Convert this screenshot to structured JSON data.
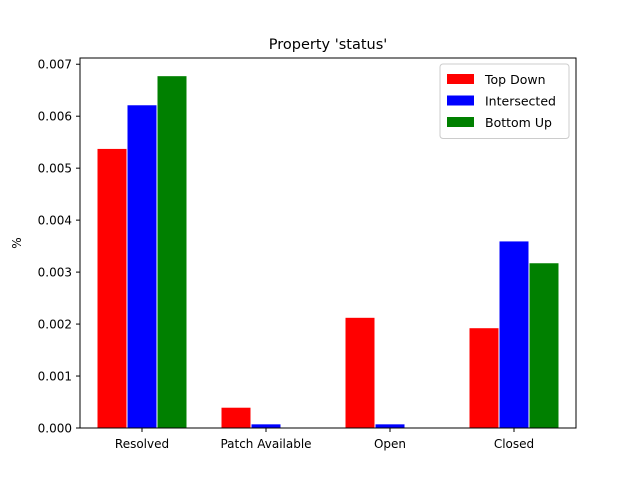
{
  "chart_data": {
    "type": "bar",
    "title": "Property 'status'",
    "xlabel": "",
    "ylabel": "%",
    "categories": [
      "Resolved",
      "Patch Available",
      "Open",
      "Closed"
    ],
    "series": [
      {
        "name": "Top Down",
        "color": "#ff0000",
        "values": [
          0.00538,
          0.0004,
          0.00213,
          0.00193
        ]
      },
      {
        "name": "Intersected",
        "color": "#0000ff",
        "values": [
          0.00622,
          8e-05,
          8e-05,
          0.0036
        ]
      },
      {
        "name": "Bottom Up",
        "color": "#008000",
        "values": [
          0.00678,
          0.0,
          0.0,
          0.00318
        ]
      }
    ],
    "ylim": [
      0,
      0.00712
    ],
    "yticks": [
      "0.000",
      "0.001",
      "0.002",
      "0.003",
      "0.004",
      "0.005",
      "0.006",
      "0.007"
    ],
    "ytick_values": [
      0,
      0.001,
      0.002,
      0.003,
      0.004,
      0.005,
      0.006,
      0.007
    ],
    "grid": false,
    "legend_position": "top-right"
  }
}
